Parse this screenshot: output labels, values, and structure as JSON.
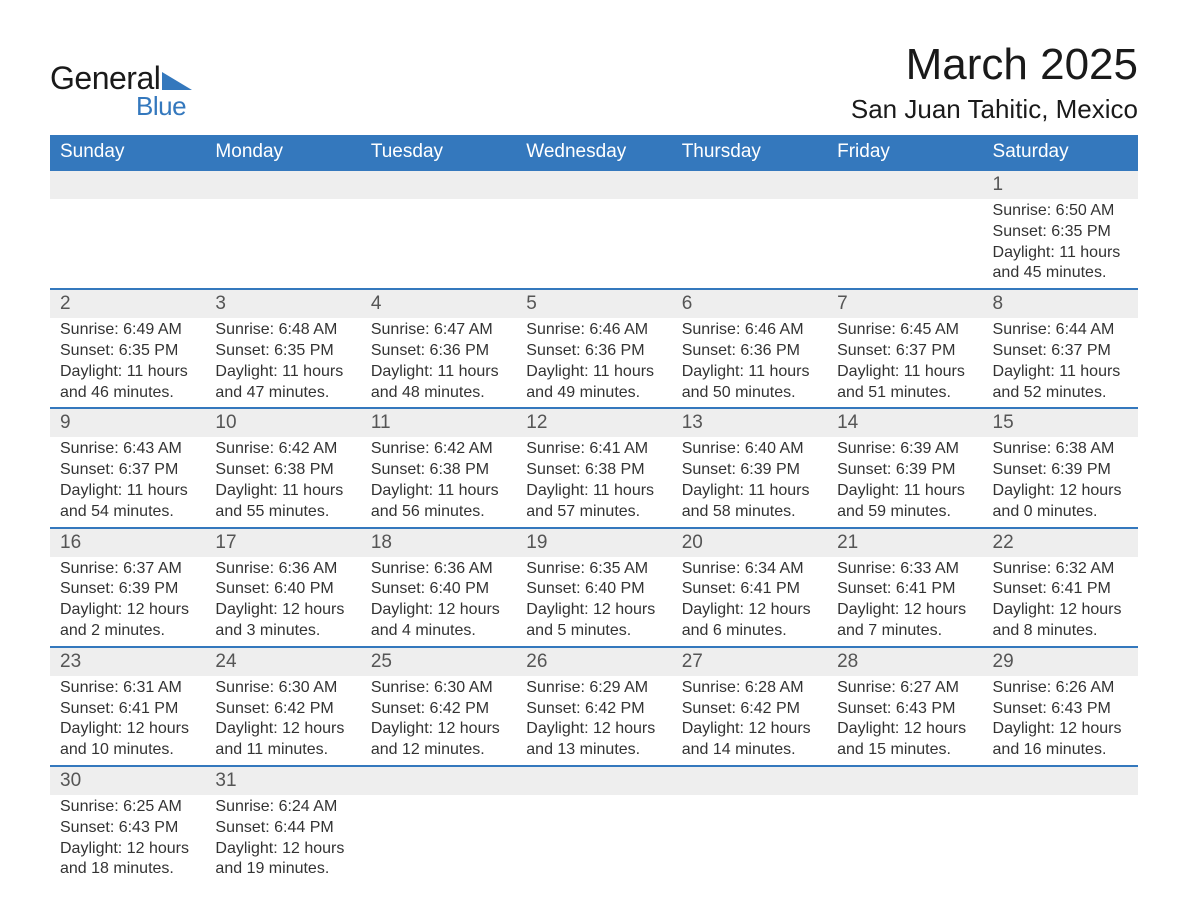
{
  "logo": {
    "word1": "General",
    "word2": "Blue",
    "tri_color": "#3478bd"
  },
  "title": "March 2025",
  "location": "San Juan Tahitic, Mexico",
  "day_headers": [
    "Sunday",
    "Monday",
    "Tuesday",
    "Wednesday",
    "Thursday",
    "Friday",
    "Saturday"
  ],
  "colors": {
    "header_bg": "#3478bd",
    "header_text": "#ffffff",
    "daynum_bg": "#eeeeee",
    "row_divider": "#3478bd",
    "text": "#333333"
  },
  "weeks": [
    [
      {
        "day": "",
        "sunrise": "",
        "sunset": "",
        "daylight": ""
      },
      {
        "day": "",
        "sunrise": "",
        "sunset": "",
        "daylight": ""
      },
      {
        "day": "",
        "sunrise": "",
        "sunset": "",
        "daylight": ""
      },
      {
        "day": "",
        "sunrise": "",
        "sunset": "",
        "daylight": ""
      },
      {
        "day": "",
        "sunrise": "",
        "sunset": "",
        "daylight": ""
      },
      {
        "day": "",
        "sunrise": "",
        "sunset": "",
        "daylight": ""
      },
      {
        "day": "1",
        "sunrise": "Sunrise: 6:50 AM",
        "sunset": "Sunset: 6:35 PM",
        "daylight": "Daylight: 11 hours and 45 minutes."
      }
    ],
    [
      {
        "day": "2",
        "sunrise": "Sunrise: 6:49 AM",
        "sunset": "Sunset: 6:35 PM",
        "daylight": "Daylight: 11 hours and 46 minutes."
      },
      {
        "day": "3",
        "sunrise": "Sunrise: 6:48 AM",
        "sunset": "Sunset: 6:35 PM",
        "daylight": "Daylight: 11 hours and 47 minutes."
      },
      {
        "day": "4",
        "sunrise": "Sunrise: 6:47 AM",
        "sunset": "Sunset: 6:36 PM",
        "daylight": "Daylight: 11 hours and 48 minutes."
      },
      {
        "day": "5",
        "sunrise": "Sunrise: 6:46 AM",
        "sunset": "Sunset: 6:36 PM",
        "daylight": "Daylight: 11 hours and 49 minutes."
      },
      {
        "day": "6",
        "sunrise": "Sunrise: 6:46 AM",
        "sunset": "Sunset: 6:36 PM",
        "daylight": "Daylight: 11 hours and 50 minutes."
      },
      {
        "day": "7",
        "sunrise": "Sunrise: 6:45 AM",
        "sunset": "Sunset: 6:37 PM",
        "daylight": "Daylight: 11 hours and 51 minutes."
      },
      {
        "day": "8",
        "sunrise": "Sunrise: 6:44 AM",
        "sunset": "Sunset: 6:37 PM",
        "daylight": "Daylight: 11 hours and 52 minutes."
      }
    ],
    [
      {
        "day": "9",
        "sunrise": "Sunrise: 6:43 AM",
        "sunset": "Sunset: 6:37 PM",
        "daylight": "Daylight: 11 hours and 54 minutes."
      },
      {
        "day": "10",
        "sunrise": "Sunrise: 6:42 AM",
        "sunset": "Sunset: 6:38 PM",
        "daylight": "Daylight: 11 hours and 55 minutes."
      },
      {
        "day": "11",
        "sunrise": "Sunrise: 6:42 AM",
        "sunset": "Sunset: 6:38 PM",
        "daylight": "Daylight: 11 hours and 56 minutes."
      },
      {
        "day": "12",
        "sunrise": "Sunrise: 6:41 AM",
        "sunset": "Sunset: 6:38 PM",
        "daylight": "Daylight: 11 hours and 57 minutes."
      },
      {
        "day": "13",
        "sunrise": "Sunrise: 6:40 AM",
        "sunset": "Sunset: 6:39 PM",
        "daylight": "Daylight: 11 hours and 58 minutes."
      },
      {
        "day": "14",
        "sunrise": "Sunrise: 6:39 AM",
        "sunset": "Sunset: 6:39 PM",
        "daylight": "Daylight: 11 hours and 59 minutes."
      },
      {
        "day": "15",
        "sunrise": "Sunrise: 6:38 AM",
        "sunset": "Sunset: 6:39 PM",
        "daylight": "Daylight: 12 hours and 0 minutes."
      }
    ],
    [
      {
        "day": "16",
        "sunrise": "Sunrise: 6:37 AM",
        "sunset": "Sunset: 6:39 PM",
        "daylight": "Daylight: 12 hours and 2 minutes."
      },
      {
        "day": "17",
        "sunrise": "Sunrise: 6:36 AM",
        "sunset": "Sunset: 6:40 PM",
        "daylight": "Daylight: 12 hours and 3 minutes."
      },
      {
        "day": "18",
        "sunrise": "Sunrise: 6:36 AM",
        "sunset": "Sunset: 6:40 PM",
        "daylight": "Daylight: 12 hours and 4 minutes."
      },
      {
        "day": "19",
        "sunrise": "Sunrise: 6:35 AM",
        "sunset": "Sunset: 6:40 PM",
        "daylight": "Daylight: 12 hours and 5 minutes."
      },
      {
        "day": "20",
        "sunrise": "Sunrise: 6:34 AM",
        "sunset": "Sunset: 6:41 PM",
        "daylight": "Daylight: 12 hours and 6 minutes."
      },
      {
        "day": "21",
        "sunrise": "Sunrise: 6:33 AM",
        "sunset": "Sunset: 6:41 PM",
        "daylight": "Daylight: 12 hours and 7 minutes."
      },
      {
        "day": "22",
        "sunrise": "Sunrise: 6:32 AM",
        "sunset": "Sunset: 6:41 PM",
        "daylight": "Daylight: 12 hours and 8 minutes."
      }
    ],
    [
      {
        "day": "23",
        "sunrise": "Sunrise: 6:31 AM",
        "sunset": "Sunset: 6:41 PM",
        "daylight": "Daylight: 12 hours and 10 minutes."
      },
      {
        "day": "24",
        "sunrise": "Sunrise: 6:30 AM",
        "sunset": "Sunset: 6:42 PM",
        "daylight": "Daylight: 12 hours and 11 minutes."
      },
      {
        "day": "25",
        "sunrise": "Sunrise: 6:30 AM",
        "sunset": "Sunset: 6:42 PM",
        "daylight": "Daylight: 12 hours and 12 minutes."
      },
      {
        "day": "26",
        "sunrise": "Sunrise: 6:29 AM",
        "sunset": "Sunset: 6:42 PM",
        "daylight": "Daylight: 12 hours and 13 minutes."
      },
      {
        "day": "27",
        "sunrise": "Sunrise: 6:28 AM",
        "sunset": "Sunset: 6:42 PM",
        "daylight": "Daylight: 12 hours and 14 minutes."
      },
      {
        "day": "28",
        "sunrise": "Sunrise: 6:27 AM",
        "sunset": "Sunset: 6:43 PM",
        "daylight": "Daylight: 12 hours and 15 minutes."
      },
      {
        "day": "29",
        "sunrise": "Sunrise: 6:26 AM",
        "sunset": "Sunset: 6:43 PM",
        "daylight": "Daylight: 12 hours and 16 minutes."
      }
    ],
    [
      {
        "day": "30",
        "sunrise": "Sunrise: 6:25 AM",
        "sunset": "Sunset: 6:43 PM",
        "daylight": "Daylight: 12 hours and 18 minutes."
      },
      {
        "day": "31",
        "sunrise": "Sunrise: 6:24 AM",
        "sunset": "Sunset: 6:44 PM",
        "daylight": "Daylight: 12 hours and 19 minutes."
      },
      {
        "day": "",
        "sunrise": "",
        "sunset": "",
        "daylight": ""
      },
      {
        "day": "",
        "sunrise": "",
        "sunset": "",
        "daylight": ""
      },
      {
        "day": "",
        "sunrise": "",
        "sunset": "",
        "daylight": ""
      },
      {
        "day": "",
        "sunrise": "",
        "sunset": "",
        "daylight": ""
      },
      {
        "day": "",
        "sunrise": "",
        "sunset": "",
        "daylight": ""
      }
    ]
  ]
}
